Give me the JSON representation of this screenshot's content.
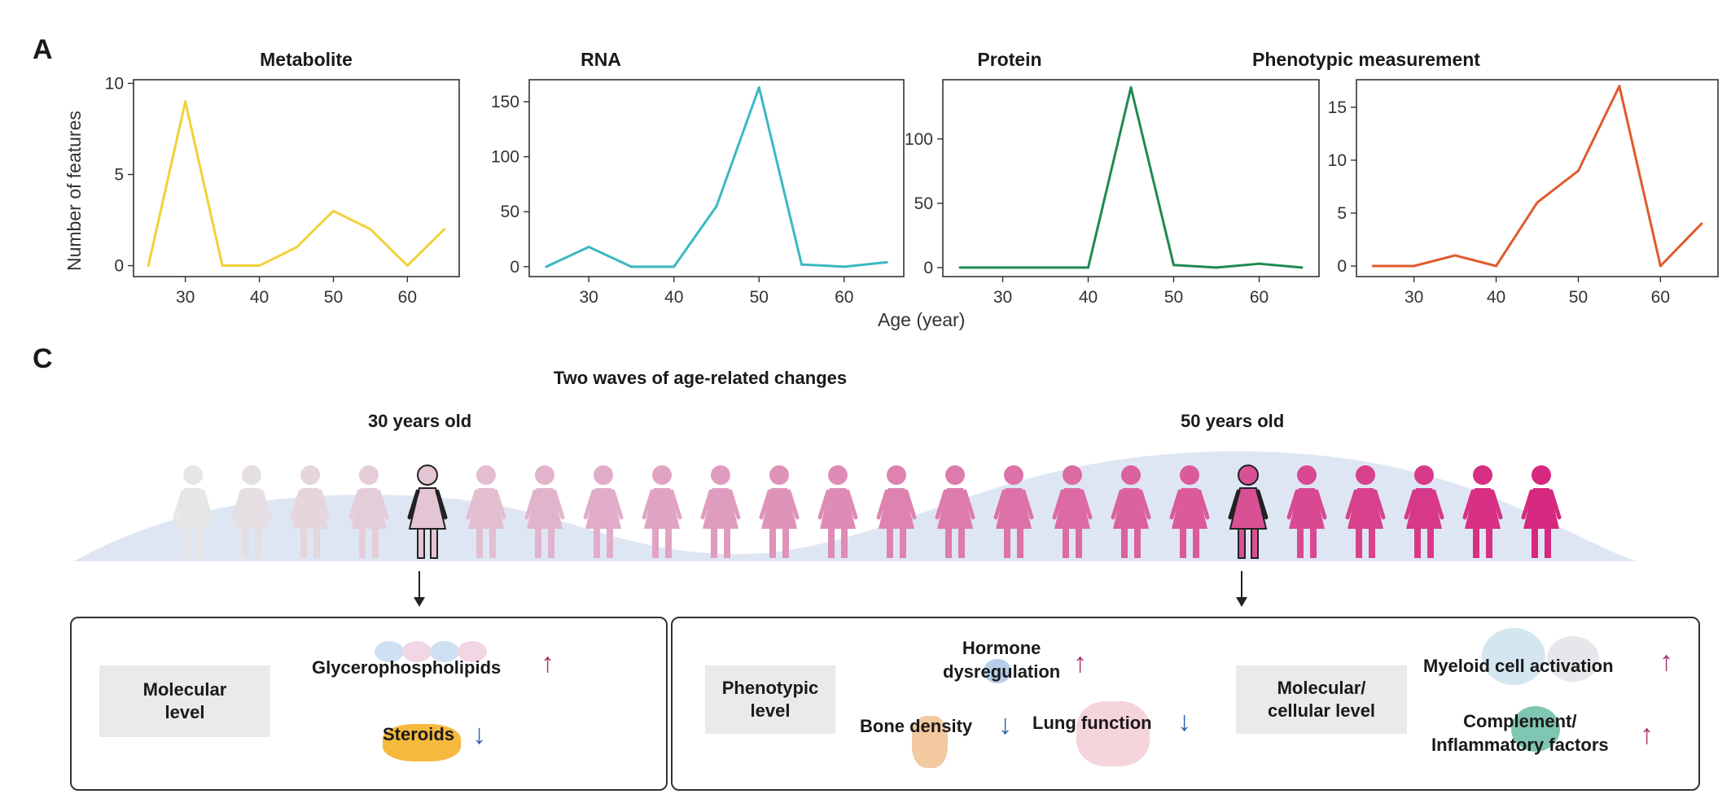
{
  "panel_a_label": "A",
  "panel_c_label": "C",
  "shared_xlabel": "Age (year)",
  "shared_ylabel": "Number of features",
  "chart_data": [
    {
      "type": "line",
      "title": "Metabolite",
      "color": "#f0d23a",
      "x": [
        25,
        30,
        35,
        40,
        45,
        50,
        55,
        60,
        65
      ],
      "values": [
        0,
        9,
        0,
        0,
        1,
        3,
        2,
        0,
        2
      ],
      "xlim": [
        23,
        67
      ],
      "ylim": [
        -0.6,
        10.2
      ],
      "xticks": [
        30,
        40,
        50,
        60
      ],
      "yticks": [
        0,
        5,
        10
      ]
    },
    {
      "type": "line",
      "title": "RNA",
      "color": "#3bb8c3",
      "x": [
        25,
        30,
        35,
        40,
        45,
        50,
        55,
        60,
        65
      ],
      "values": [
        0,
        18,
        0,
        0,
        55,
        163,
        2,
        0,
        4
      ],
      "xlim": [
        23,
        67
      ],
      "ylim": [
        -9,
        170
      ],
      "xticks": [
        30,
        40,
        50,
        60
      ],
      "yticks": [
        0,
        50,
        100,
        150
      ]
    },
    {
      "type": "line",
      "title": "Protein",
      "color": "#1e8a50",
      "x": [
        25,
        30,
        35,
        40,
        45,
        50,
        55,
        60,
        65
      ],
      "values": [
        0,
        0,
        0,
        0,
        140,
        2,
        0,
        3,
        0
      ],
      "xlim": [
        23,
        67
      ],
      "ylim": [
        -7,
        146
      ],
      "xticks": [
        30,
        40,
        50,
        60
      ],
      "yticks": [
        0,
        50,
        100
      ]
    },
    {
      "type": "line",
      "title": "Phenotypic measurement",
      "color": "#e05a2c",
      "x": [
        25,
        30,
        35,
        40,
        45,
        50,
        55,
        60,
        65
      ],
      "values": [
        0,
        0,
        1,
        0,
        6,
        9,
        17,
        0,
        4
      ],
      "xlim": [
        23,
        67
      ],
      "ylim": [
        -1,
        17.6
      ],
      "xticks": [
        30,
        40,
        50,
        60
      ],
      "yticks": [
        0,
        5,
        10,
        15
      ]
    }
  ],
  "panel_c": {
    "title": "Two waves of age-related changes",
    "wave1_label": "30 years old",
    "wave2_label": "50 years old",
    "figure_count": 24,
    "highlight_indices": [
      4,
      18
    ],
    "colors": {
      "first_figure": "#e6e6e6",
      "last_figure": "#d6287f",
      "wave": "#dfe6f3",
      "up_arrow": "#a8356d",
      "down_arrow": "#2f63b3"
    },
    "box1": {
      "label": "Molecular\nlevel",
      "items": [
        {
          "text": "Glycerophospholipids",
          "direction": "up"
        },
        {
          "text": "Steroids",
          "direction": "down"
        }
      ]
    },
    "box2": {
      "label_left": "Phenotypic\nlevel",
      "label_right": "Molecular/\ncellular level",
      "items": [
        {
          "text": "Hormone\ndysregulation",
          "direction": "up"
        },
        {
          "text": "Bone density",
          "direction": "down"
        },
        {
          "text": "Lung function",
          "direction": "down"
        },
        {
          "text": "Myeloid cell activation",
          "direction": "up"
        },
        {
          "text": "Complement/\nInflammatory factors",
          "direction": "up"
        }
      ]
    }
  }
}
